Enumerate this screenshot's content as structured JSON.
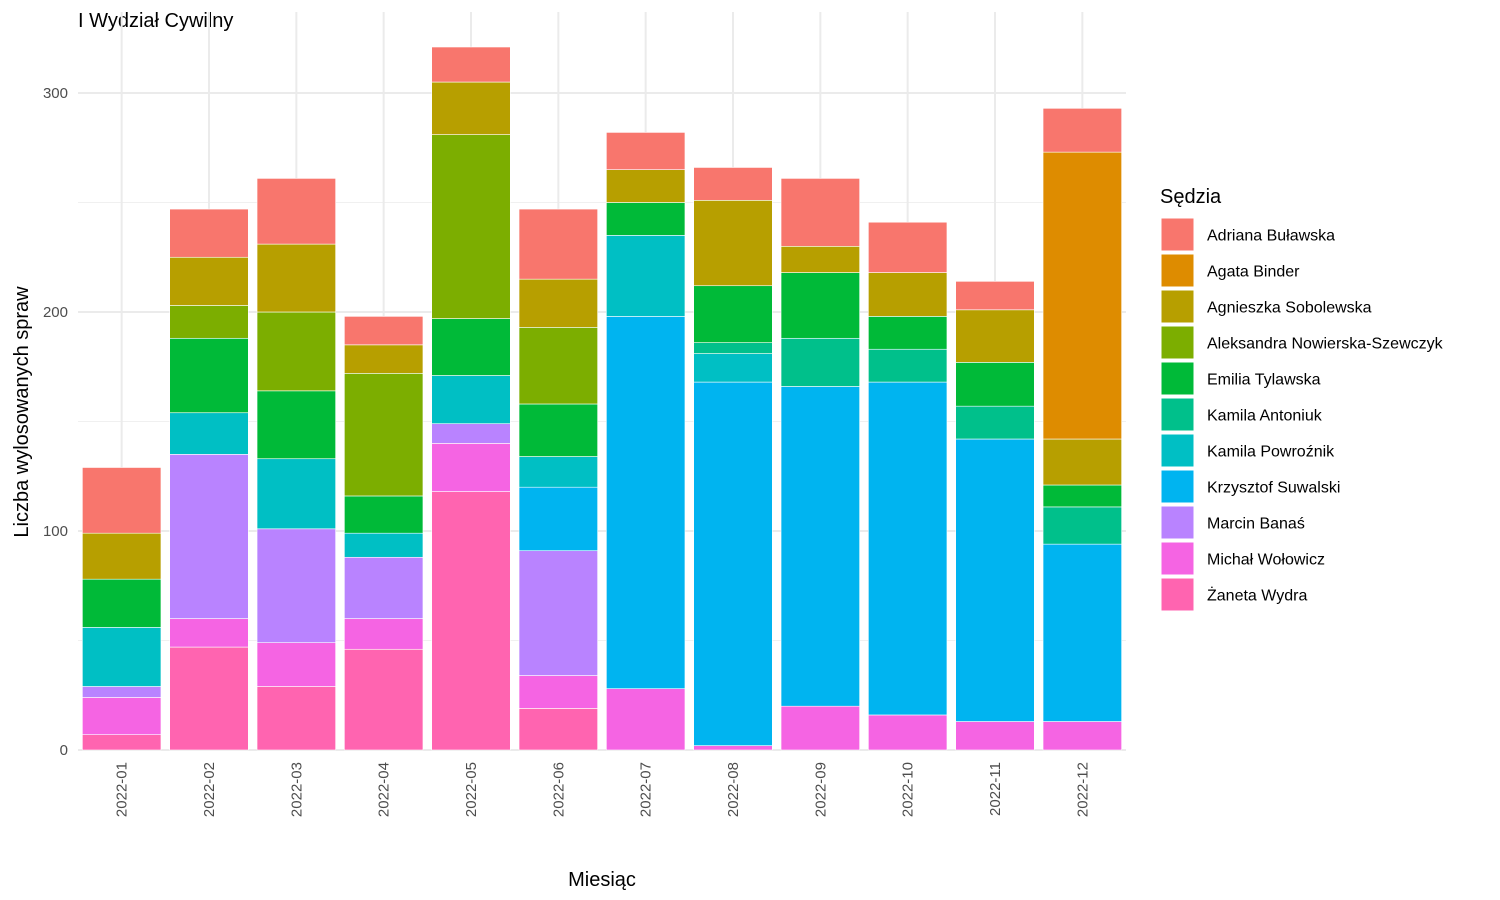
{
  "chart_data": {
    "type": "bar",
    "stacked": true,
    "title": "I Wydział Cywilny",
    "xlabel": "Miesiąc",
    "ylabel": "Liczba wylosowanych spraw",
    "ylim": [
      0,
      325
    ],
    "y_ticks": [
      0,
      100,
      200,
      300
    ],
    "grid": true,
    "legend_title": "Sędzia",
    "legend_position": "right",
    "categories": [
      "2022-01",
      "2022-02",
      "2022-03",
      "2022-04",
      "2022-05",
      "2022-06",
      "2022-07",
      "2022-08",
      "2022-09",
      "2022-10",
      "2022-11",
      "2022-12"
    ],
    "series": [
      {
        "name": "Adriana Buławska",
        "color": "#F8766D",
        "values": [
          30,
          22,
          30,
          13,
          16,
          32,
          17,
          15,
          31,
          23,
          13,
          20
        ]
      },
      {
        "name": "Agata Binder",
        "color": "#DE8C00",
        "values": [
          0,
          0,
          0,
          0,
          0,
          0,
          0,
          0,
          0,
          0,
          0,
          131
        ]
      },
      {
        "name": "Agnieszka Sobolewska",
        "color": "#B79F00",
        "values": [
          21,
          22,
          31,
          13,
          24,
          22,
          15,
          39,
          12,
          20,
          24,
          21
        ]
      },
      {
        "name": "Aleksandra Nowierska-Szewczyk",
        "color": "#7CAE00",
        "values": [
          0,
          15,
          36,
          56,
          84,
          35,
          0,
          0,
          0,
          0,
          0,
          0
        ]
      },
      {
        "name": "Emilia Tylawska",
        "color": "#00BA38",
        "values": [
          22,
          34,
          31,
          17,
          26,
          24,
          15,
          26,
          30,
          15,
          20,
          10
        ]
      },
      {
        "name": "Kamila Antoniuk",
        "color": "#00C08B",
        "values": [
          0,
          0,
          0,
          0,
          0,
          0,
          0,
          5,
          22,
          15,
          15,
          17
        ]
      },
      {
        "name": "Kamila Powroźnik",
        "color": "#00BFC4",
        "values": [
          27,
          19,
          32,
          11,
          22,
          14,
          37,
          13,
          0,
          0,
          0,
          0
        ]
      },
      {
        "name": "Krzysztof Suwalski",
        "color": "#00B4F0",
        "values": [
          0,
          0,
          0,
          0,
          0,
          29,
          170,
          166,
          146,
          152,
          129,
          81
        ]
      },
      {
        "name": "Marcin Banaś",
        "color": "#B983FF",
        "values": [
          5,
          75,
          52,
          28,
          9,
          57,
          0,
          0,
          0,
          0,
          0,
          0
        ]
      },
      {
        "name": "Michał Wołowicz",
        "color": "#F564E3",
        "values": [
          17,
          13,
          20,
          14,
          22,
          15,
          28,
          2,
          20,
          16,
          13,
          13
        ]
      },
      {
        "name": "Żaneta Wydra",
        "color": "#FF64B0",
        "values": [
          7,
          47,
          29,
          46,
          118,
          19,
          0,
          0,
          0,
          0,
          0,
          0
        ]
      }
    ]
  }
}
